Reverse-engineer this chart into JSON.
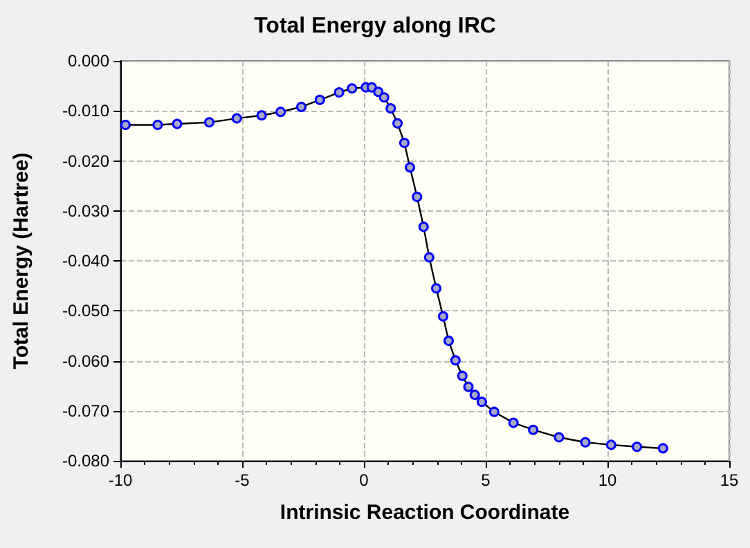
{
  "chart_data": {
    "type": "line",
    "title": "Total Energy along IRC",
    "xlabel": "Intrinsic Reaction Coordinate",
    "ylabel": "Total Energy (Hartree)",
    "xlim": [
      -10,
      15
    ],
    "xticks": [
      -10,
      -5,
      0,
      5,
      10,
      15
    ],
    "ylim": [
      -0.08,
      0
    ],
    "yticks": [
      {
        "value": 0,
        "label": "0.000"
      },
      {
        "value": -0.01,
        "label": "-0.010"
      },
      {
        "value": -0.02,
        "label": "-0.020"
      },
      {
        "value": -0.03,
        "label": "-0.030"
      },
      {
        "value": -0.04,
        "label": "-0.040"
      },
      {
        "value": -0.05,
        "label": "-0.050"
      },
      {
        "value": -0.06,
        "label": "-0.060"
      },
      {
        "value": -0.07,
        "label": "-0.070"
      },
      {
        "value": -0.08,
        "label": "-0.080"
      }
    ],
    "grid": true,
    "marker": "circle",
    "line_style": "solid",
    "series": [
      {
        "color": "#0000ff",
        "x": [
          -9.79,
          -8.47,
          -7.67,
          -6.35,
          -5.22,
          -4.2,
          -3.42,
          -2.57,
          -1.81,
          -1.02,
          -0.49,
          0.08,
          0.32,
          0.59,
          0.83,
          1.1,
          1.38,
          1.66,
          1.89,
          2.18,
          2.45,
          2.68,
          2.97,
          3.25,
          3.48,
          3.76,
          4.04,
          4.29,
          4.55,
          4.84,
          5.35,
          6.14,
          6.95,
          8.01,
          9.09,
          10.15,
          11.21,
          12.28
        ],
        "values": [
          -0.0128,
          -0.0128,
          -0.0126,
          -0.0123,
          -0.0115,
          -0.0109,
          -0.0102,
          -0.0092,
          -0.0078,
          -0.0063,
          -0.0055,
          -0.0053,
          -0.0053,
          -0.0062,
          -0.0073,
          -0.0095,
          -0.0125,
          -0.0164,
          -0.0213,
          -0.0272,
          -0.0332,
          -0.0393,
          -0.0455,
          -0.0511,
          -0.056,
          -0.0599,
          -0.063,
          -0.0652,
          -0.0668,
          -0.0682,
          -0.0702,
          -0.0724,
          -0.0738,
          -0.0753,
          -0.0763,
          -0.0768,
          -0.0772,
          -0.0775
        ]
      }
    ]
  }
}
